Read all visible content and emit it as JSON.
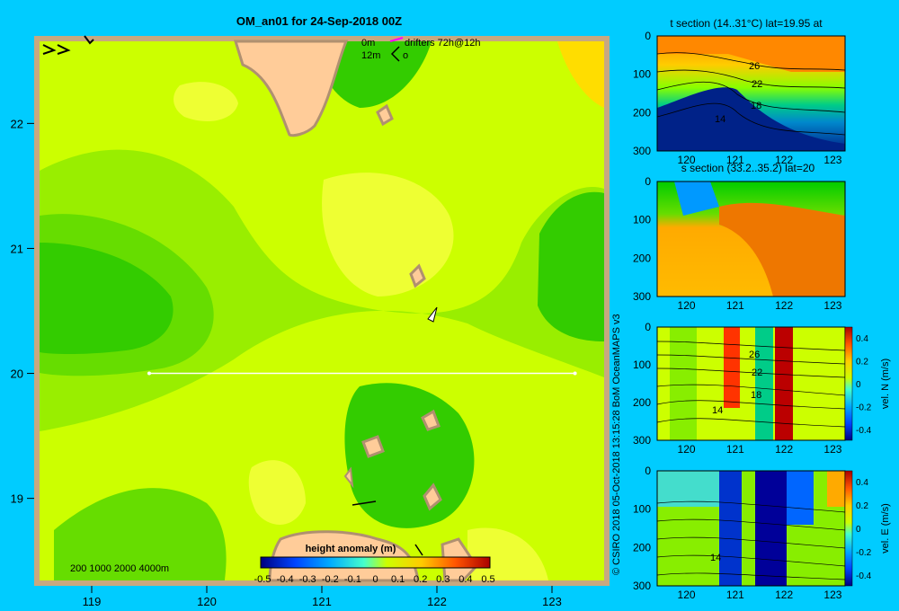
{
  "title": "OM_an01 for 24-Sep-2018 00Z",
  "credit": "© CSIRO 2018   05-Oct-2018 13:15:28 BoM OceanMAPS v3",
  "drifter_legend": {
    "line1_depth": "0m",
    "line1_text": "drifters 72h@12h",
    "line2_depth": "12m",
    "line2_text": "o"
  },
  "depth_legend": "200  1000  2000  4000m",
  "colorbar": {
    "label": "height anomaly (m)",
    "ticks": [
      "-0.5",
      "-0.4",
      "-0.3",
      "-0.2",
      "-0.1",
      "0",
      "0.1",
      "0.2",
      "0.3",
      "0.4",
      "0.5"
    ]
  },
  "chart_data": [
    {
      "type": "heatmap",
      "panel": "map",
      "x_ticks": [
        "119",
        "120",
        "121",
        "122",
        "123"
      ],
      "y_ticks": [
        "22",
        "21",
        "20",
        "19"
      ],
      "xlim": [
        118.5,
        123.5
      ],
      "ylim": [
        18.3,
        22.7
      ],
      "section_line": {
        "lon": [
          119.5,
          123.2
        ],
        "lat": 20.0
      },
      "value_range": [
        -0.5,
        0.5
      ]
    },
    {
      "type": "heatmap",
      "panel": "t-section",
      "title": "t section (14..31°C) lat=19.95 at",
      "x_ticks": [
        "120",
        "121",
        "122",
        "123"
      ],
      "y_ticks": [
        "0",
        "100",
        "200",
        "300"
      ],
      "contour_labels": [
        "26",
        "22",
        "18",
        "14"
      ]
    },
    {
      "type": "heatmap",
      "panel": "s-section",
      "title": "s section (33.2..35.2) lat=20",
      "x_ticks": [
        "120",
        "121",
        "122",
        "123"
      ],
      "y_ticks": [
        "0",
        "100",
        "200",
        "300"
      ]
    },
    {
      "type": "heatmap",
      "panel": "vn-section",
      "x_ticks": [
        "120",
        "121",
        "122",
        "123"
      ],
      "y_ticks": [
        "0",
        "100",
        "200",
        "300"
      ],
      "contour_labels": [
        "26",
        "22",
        "18",
        "14"
      ],
      "colorbar_label": "vel. N  (m/s)",
      "colorbar_ticks": [
        "0.4",
        "0.2",
        "0",
        "-0.2",
        "-0.4"
      ]
    },
    {
      "type": "heatmap",
      "panel": "ve-section",
      "x_ticks": [
        "120",
        "121",
        "122",
        "123"
      ],
      "y_ticks": [
        "0",
        "100",
        "200",
        "300"
      ],
      "contour_labels": [
        "14"
      ],
      "colorbar_label": "vel. E  (m/s)",
      "colorbar_ticks": [
        "0.4",
        "0.2",
        "0",
        "-0.2",
        "-0.4"
      ]
    }
  ]
}
